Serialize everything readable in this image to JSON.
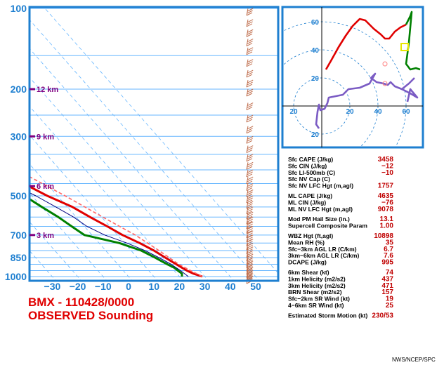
{
  "station_title": "BMX - 110428/0000",
  "subtitle": "OBSERVED Sounding",
  "credit": "NWS/NCEP/SPC",
  "colors": {
    "border": "#1e7fd0",
    "temperature": "#e00000",
    "dewpoint": "#008000",
    "parcel": "#ff6666",
    "wetbulb": "#000080",
    "wind_barbs": "#c07050",
    "height_marks": "#800080",
    "hodo_low": "#e00000",
    "hodo_high": "#7b5cc4"
  },
  "chart_data": [
    {
      "type": "line",
      "name": "skew-t",
      "yscale": "log-pressure",
      "ylim": [
        1050,
        100
      ],
      "xlim": [
        -40,
        50
      ],
      "pressure_ticks": [
        "100",
        "200",
        "300",
        "500",
        "700",
        "850",
        "1000"
      ],
      "temp_ticks": [
        "−30",
        "−20",
        "−10",
        "0",
        "10",
        "20",
        "30",
        "40",
        "50"
      ],
      "height_marks": [
        {
          "p": 200,
          "label": "12 km"
        },
        {
          "p": 300,
          "label": "9 km"
        },
        {
          "p": 460,
          "label": "6 km"
        },
        {
          "p": 700,
          "label": "3 km"
        }
      ],
      "series": [
        {
          "key": "temperature",
          "points": [
            [
              1000,
              29
            ],
            [
              975,
              26.5
            ],
            [
              950,
              25
            ],
            [
              925,
              24
            ],
            [
              900,
              23
            ],
            [
              850,
              21
            ],
            [
              800,
              19
            ],
            [
              750,
              16
            ],
            [
              700,
              12
            ],
            [
              650,
              9
            ],
            [
              600,
              5.5
            ],
            [
              550,
              2
            ],
            [
              500,
              -4
            ],
            [
              450,
              -9
            ],
            [
              400,
              -14
            ],
            [
              350,
              -20
            ],
            [
              300,
              -29
            ],
            [
              250,
              -36
            ],
            [
              200,
              -44
            ],
            [
              175,
              -49
            ],
            [
              150,
              -54
            ],
            [
              125,
              -56
            ],
            [
              100,
              -62
            ]
          ]
        },
        {
          "key": "dewpoint",
          "points": [
            [
              1000,
              21
            ],
            [
              975,
              22
            ],
            [
              950,
              21.5
            ],
            [
              925,
              21
            ],
            [
              900,
              19.5
            ],
            [
              850,
              17
            ],
            [
              800,
              14
            ],
            [
              750,
              8
            ],
            [
              700,
              -3
            ],
            [
              650,
              -5
            ],
            [
              600,
              -7
            ],
            [
              550,
              -10
            ],
            [
              500,
              -13
            ],
            [
              475,
              -28
            ],
            [
              450,
              -38
            ],
            [
              430,
              -30
            ],
            [
              400,
              -40
            ],
            [
              350,
              -45
            ],
            [
              300,
              -41
            ],
            [
              275,
              -20
            ],
            [
              250,
              -23
            ],
            [
              200,
              -35
            ],
            [
              150,
              -48
            ],
            [
              125,
              -53
            ],
            [
              110,
              -44
            ],
            [
              100,
              -43
            ]
          ]
        },
        {
          "key": "parcel",
          "points": [
            [
              1000,
              29
            ],
            [
              950,
              26.5
            ],
            [
              900,
              24
            ],
            [
              850,
              22.5
            ],
            [
              800,
              21
            ],
            [
              700,
              17
            ],
            [
              600,
              10.5
            ],
            [
              500,
              3
            ],
            [
              400,
              -7
            ],
            [
              300,
              -22
            ],
            [
              250,
              -32
            ],
            [
              200,
              -41
            ],
            [
              150,
              -53
            ],
            [
              125,
              -61
            ],
            [
              100,
              -72
            ]
          ]
        },
        {
          "key": "wetbulb",
          "points": [
            [
              1000,
              23.5
            ],
            [
              950,
              22.5
            ],
            [
              900,
              21
            ],
            [
              850,
              18.5
            ],
            [
              800,
              15.5
            ],
            [
              750,
              11
            ],
            [
              700,
              5
            ],
            [
              650,
              1
            ],
            [
              600,
              -1
            ],
            [
              550,
              -4.5
            ],
            [
              500,
              -8.5
            ],
            [
              450,
              -14
            ],
            [
              400,
              -19
            ],
            [
              350,
              -24
            ],
            [
              300,
              -32
            ]
          ]
        }
      ],
      "wind_levels_hpa": [
        1000,
        975,
        950,
        925,
        900,
        875,
        850,
        825,
        800,
        775,
        750,
        725,
        700,
        675,
        650,
        625,
        600,
        575,
        550,
        525,
        500,
        475,
        450,
        425,
        400,
        375,
        350,
        325,
        300,
        275,
        250,
        225,
        200,
        185,
        170,
        155,
        140,
        130,
        120,
        110,
        100
      ]
    },
    {
      "type": "line",
      "name": "hodograph",
      "xlim": [
        -10,
        70
      ],
      "ylim": [
        -25,
        70
      ],
      "rings": [
        20,
        40,
        60
      ],
      "x_ticks": [
        "20",
        "20",
        "40",
        "60"
      ],
      "y_ticks": [
        "60",
        "40",
        "20",
        "20"
      ],
      "series": [
        {
          "key": "hodo_low",
          "points": [
            [
              3,
              26
            ],
            [
              7,
              33
            ],
            [
              12,
              42
            ],
            [
              17,
              50
            ],
            [
              22,
              57
            ],
            [
              27,
              62
            ],
            [
              31,
              61
            ],
            [
              37,
              55
            ],
            [
              42,
              51
            ],
            [
              45,
              48
            ],
            [
              48,
              48
            ],
            [
              52,
              53
            ],
            [
              56,
              56
            ],
            [
              60,
              58
            ]
          ]
        },
        {
          "key": "dewpoint",
          "points": [
            [
              60,
              58
            ],
            [
              63,
              64
            ],
            [
              64,
              67
            ],
            [
              62,
              45
            ],
            [
              60,
              30
            ],
            [
              63,
              26
            ],
            [
              67,
              27
            ],
            [
              70,
              26
            ]
          ]
        },
        {
          "key": "hodo_high",
          "points": [
            [
              66,
              20
            ],
            [
              62,
              16
            ],
            [
              57,
              12
            ],
            [
              52,
              14
            ],
            [
              49,
              17
            ],
            [
              47,
              15
            ],
            [
              44,
              16
            ],
            [
              39,
              17
            ],
            [
              35,
              20
            ],
            [
              38,
              23
            ],
            [
              34,
              16
            ],
            [
              27,
              13
            ],
            [
              19,
              12
            ],
            [
              15,
              8
            ],
            [
              10,
              7
            ],
            [
              5,
              6
            ],
            [
              4,
              2
            ],
            [
              2,
              -2
            ],
            [
              -1,
              -3
            ],
            [
              -2,
              1
            ],
            [
              -3,
              -4
            ],
            [
              -4,
              -13
            ],
            [
              -2,
              -16
            ]
          ]
        },
        {
          "key": "hodo_high",
          "points": [
            [
              57,
              12
            ],
            [
              63,
              9
            ],
            [
              68,
              6
            ],
            [
              63,
              12
            ],
            [
              61,
              3
            ]
          ]
        }
      ],
      "storm_motion_marker": [
        59,
        42
      ],
      "mean_wind_marker": [
        45,
        30
      ],
      "bunkers_left_marker": [
        45,
        16
      ]
    }
  ],
  "indices": [
    {
      "label": "Sfc CAPE (J/kg)",
      "value": "3458"
    },
    {
      "label": "Sfc CIN (J/kg)",
      "value": "−12"
    },
    {
      "label": "Sfc LI-500mb (C)",
      "value": "−10"
    },
    {
      "label": "Sfc NV Cap (C)",
      "value": ""
    },
    {
      "label": "Sfc NV LFC Hgt (m,agl)",
      "value": "1757"
    },
    {
      "label": "ML CAPE (J/kg)",
      "value": "4635"
    },
    {
      "label": "ML CIN (J/kg)",
      "value": "−76"
    },
    {
      "label": "ML NV LFC Hgt (m,agl)",
      "value": "9078"
    },
    {
      "label": "Mod PM Hail Size (in.)",
      "value": "13.1"
    },
    {
      "label": "Supercell Composite Param",
      "value": "1.00"
    },
    {
      "label": "WBZ Hgt (ft,agl)",
      "value": "10898"
    },
    {
      "label": "Mean RH (%)",
      "value": "35"
    },
    {
      "label": "Sfc−3km AGL LR (C/km)",
      "value": "6.7"
    },
    {
      "label": "3km−6km AGL LR (C/km)",
      "value": "7.6"
    },
    {
      "label": "DCAPE (J/kg)",
      "value": "995"
    },
    {
      "label": "6km Shear (kt)",
      "value": "74"
    },
    {
      "label": "1km Helicity (m2/s2)",
      "value": "437"
    },
    {
      "label": "3km Helicity (m2/s2)",
      "value": "471"
    },
    {
      "label": "BRN Shear (m2/s2)",
      "value": "157"
    },
    {
      "label": "Sfc−2km SR Wind (kt)",
      "value": "19"
    },
    {
      "label": "4−6km SR Wind (kt)",
      "value": "25"
    },
    {
      "label": "Estimated Storm Motion (kt)",
      "value": "230/53"
    }
  ]
}
